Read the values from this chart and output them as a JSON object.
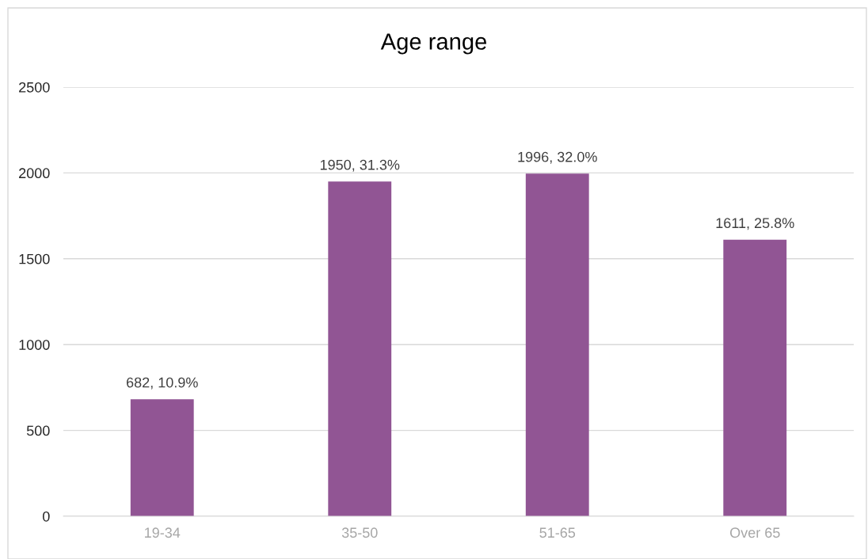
{
  "chart_data": {
    "type": "bar",
    "title": "Age range",
    "categories": [
      "19-34",
      "35-50",
      "51-65",
      "Over 65"
    ],
    "values": [
      682,
      1950,
      1996,
      1611
    ],
    "value_labels": [
      "682, 10.9%",
      "1950, 31.3%",
      "1996, 32.0%",
      "1611, 25.8%"
    ],
    "color": "#915594",
    "ylim": [
      0,
      2500
    ],
    "yticks": [
      0,
      500,
      1000,
      1500,
      2000,
      2500
    ],
    "grid": "y",
    "legend": false
  }
}
